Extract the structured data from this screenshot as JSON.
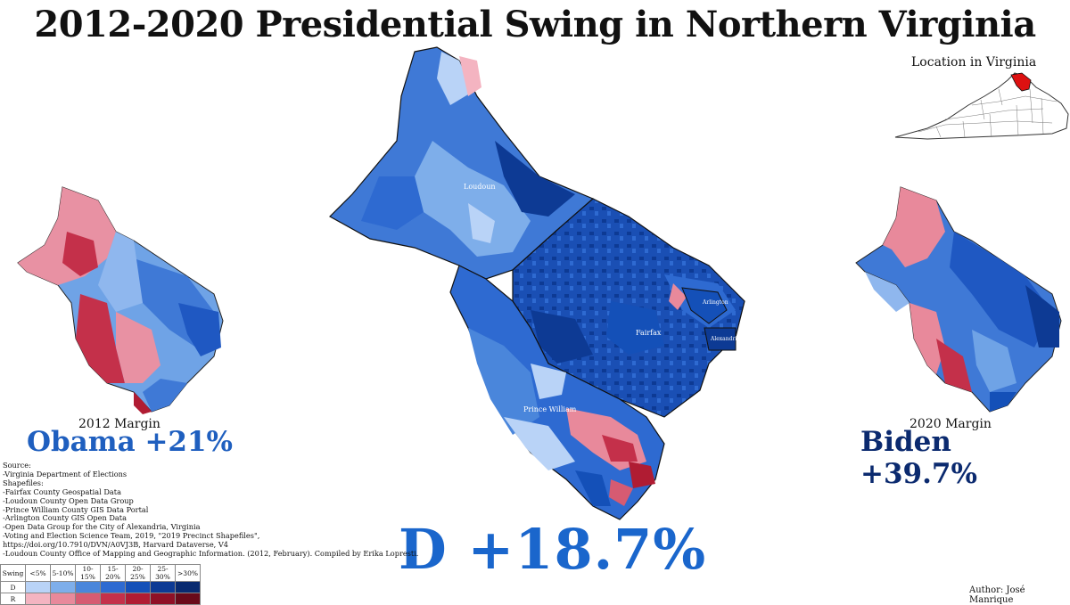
{
  "title": "2012-2020 Presidential Swing in Northern Virginia",
  "inset": {
    "label": "Location in Virginia"
  },
  "labels": {
    "loudoun": "Loudoun",
    "fairfax": "Fairfax",
    "prince_william": "Prince William",
    "arlington": "Arlington",
    "alexandria": "Alexandria"
  },
  "left_map": {
    "caption": "2012 Margin",
    "result": "Obama +21%"
  },
  "right_map": {
    "caption": "2020 Margin",
    "result": "Biden +39.7%"
  },
  "swing_result": "D +18.7%",
  "sources": [
    "Source:",
    "-Virginia Department of Elections",
    "Shapefiles:",
    "-Fairfax County Geospatial Data",
    "-Loudoun County Open Data Group",
    "-Prince William County GIS Data Portal",
    "-Arlington County GIS Open Data",
    "-Open Data Group for the City of Alexandria, Virginia",
    "-Voting and Election Science Team, 2019, \"2019 Precinct Shapefiles\",",
    "https://doi.org/10.7910/DVN/A0VJ3B, Harvard Dataverse, V4",
    "-Loudoun County Office of Mapping and Geographic Information. (2012, February). Compiled by Erika Lopresti."
  ],
  "legend": {
    "header": "Swing",
    "bins": [
      "<5%",
      "5-10%",
      "10-15%",
      "15-20%",
      "20-25%",
      "25-30%",
      ">30%"
    ],
    "rows": [
      {
        "label": "D",
        "colors": [
          "#b9d3f7",
          "#7eaeea",
          "#4a86db",
          "#2e6ad1",
          "#1450b8",
          "#0d3a94",
          "#082a70"
        ]
      },
      {
        "label": "R",
        "colors": [
          "#f4b4c1",
          "#e8899b",
          "#d65b72",
          "#c4304a",
          "#b01c33",
          "#8f1026",
          "#6a0a1a"
        ]
      }
    ]
  },
  "author": "Author: José Manrique"
}
